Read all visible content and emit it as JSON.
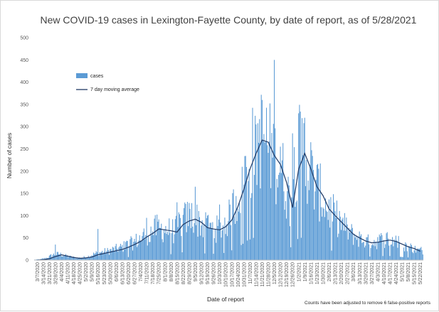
{
  "chart_data": {
    "type": "bar",
    "title": "New COVID-19 cases in Lexington-Fayette County, by date of report, as of 5/28/2021",
    "xlabel": "Date of report",
    "ylabel": "Number of cases",
    "ylim": [
      0,
      500
    ],
    "y_ticks": [
      0,
      50,
      100,
      150,
      200,
      250,
      300,
      350,
      400,
      450,
      500
    ],
    "grid": false,
    "legend_position": "upper-left",
    "x_tick_labels": [
      "3/7/2020",
      "3/14/2020",
      "3/21/2020",
      "3/28/2020",
      "4/4/2020",
      "4/11/2020",
      "4/18/2020",
      "4/25/2020",
      "5/2/2020",
      "5/9/2020",
      "5/16/2020",
      "5/23/2020",
      "5/30/2020",
      "6/6/2020",
      "6/13/2020",
      "6/20/2020",
      "6/27/2020",
      "7/4/2020",
      "7/11/2020",
      "7/18/2020",
      "7/25/2020",
      "8/1/2020",
      "8/8/2020",
      "8/15/2020",
      "8/22/2020",
      "8/29/2020",
      "9/5/2020",
      "9/12/2020",
      "9/19/2020",
      "9/26/2020",
      "10/3/2020",
      "10/10/2020",
      "10/17/2020",
      "10/24/2020",
      "10/31/2020",
      "11/7/2020",
      "11/14/2020",
      "11/21/2020",
      "11/28/2020",
      "12/5/2020",
      "12/12/2020",
      "12/19/2020",
      "12/26/2020",
      "1/2/2021",
      "1/9/2021",
      "1/16/2021",
      "1/23/2021",
      "1/30/2021",
      "2/6/2021",
      "2/13/2021",
      "2/20/2021",
      "2/27/2021",
      "3/6/2021",
      "3/13/2021",
      "3/20/2021",
      "3/27/2021",
      "4/3/2021",
      "4/10/2021",
      "4/17/2021",
      "4/24/2021",
      "5/1/2021",
      "5/8/2021",
      "5/15/2021",
      "5/22/2021"
    ],
    "series": [
      {
        "name": "cases",
        "type": "bar",
        "color": "#5b9bd5",
        "weekly_values": [
          1,
          2,
          5,
          12,
          14,
          10,
          7,
          5,
          6,
          9,
          15,
          18,
          20,
          24,
          27,
          32,
          38,
          45,
          55,
          62,
          72,
          70,
          68,
          65,
          85,
          95,
          100,
          88,
          75,
          72,
          70,
          78,
          95,
          130,
          170,
          220,
          250,
          280,
          270,
          240,
          220,
          185,
          130,
          230,
          255,
          215,
          170,
          150,
          120,
          105,
          90,
          75,
          60,
          52,
          45,
          40,
          42,
          45,
          48,
          44,
          38,
          32,
          28,
          22
        ],
        "spikes": [
          {
            "date": "3/28/2020",
            "value": 35
          },
          {
            "date": "5/16/2020",
            "value": 70
          },
          {
            "date": "7/11/2020",
            "value": 95
          },
          {
            "date": "8/15/2020",
            "value": 130
          },
          {
            "date": "9/5/2020",
            "value": 165
          },
          {
            "date": "9/19/2020",
            "value": 100
          },
          {
            "date": "10/3/2020",
            "value": 125
          },
          {
            "date": "10/31/2020",
            "value": 170
          },
          {
            "date": "11/14/2020",
            "value": 305
          },
          {
            "date": "11/21/2020",
            "value": 360
          },
          {
            "date": "12/5/2020",
            "value": 450
          },
          {
            "date": "12/12/2020",
            "value": 255
          },
          {
            "date": "12/26/2020",
            "value": 285
          },
          {
            "date": "1/2/2021",
            "value": 330
          },
          {
            "date": "1/9/2021",
            "value": 320
          },
          {
            "date": "1/16/2021",
            "value": 265
          },
          {
            "date": "2/13/2021",
            "value": 110
          },
          {
            "date": "2/27/2021",
            "value": 80
          },
          {
            "date": "4/24/2021",
            "value": 55
          }
        ]
      },
      {
        "name": "7 day moving average",
        "type": "line",
        "color": "#1f3864",
        "weekly_values": [
          0,
          1,
          3,
          8,
          12,
          9,
          6,
          4,
          5,
          7,
          12,
          15,
          18,
          21,
          24,
          29,
          35,
          42,
          52,
          60,
          70,
          68,
          66,
          63,
          80,
          88,
          92,
          85,
          73,
          70,
          68,
          75,
          90,
          120,
          160,
          205,
          240,
          270,
          265,
          235,
          215,
          175,
          118,
          205,
          240,
          205,
          165,
          145,
          115,
          100,
          86,
          72,
          58,
          50,
          43,
          39,
          40,
          43,
          45,
          42,
          36,
          30,
          26,
          20
        ]
      }
    ]
  },
  "legend": {
    "items": [
      {
        "label": "cases",
        "color": "#5b9bd5"
      },
      {
        "label": "7 day moving average",
        "color": "#1f3864"
      }
    ]
  },
  "footnote": "Counts have been adjusted to remove 6 false-positive reports"
}
